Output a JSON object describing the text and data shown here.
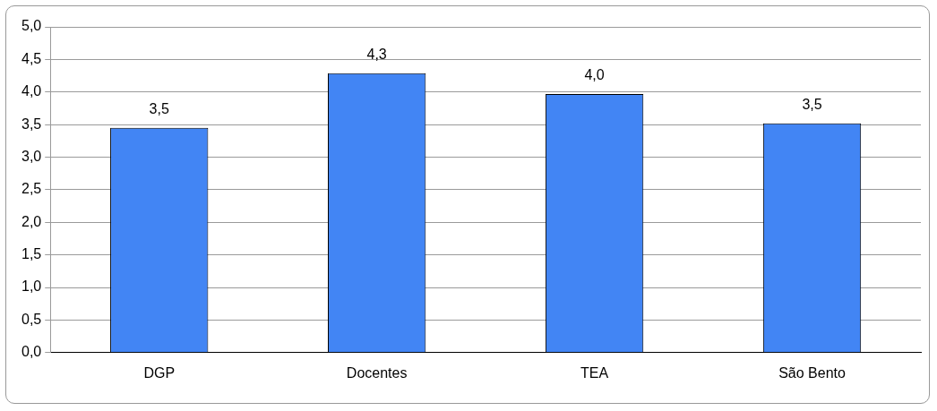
{
  "chart_data": {
    "type": "bar",
    "categories": [
      "DGP",
      "Docentes",
      "TEA",
      "São Bento"
    ],
    "values": [
      3.45,
      4.29,
      3.97,
      3.52
    ],
    "value_labels": [
      "3,5",
      "4,3",
      "4,0",
      "3,5"
    ],
    "color": "#4285f4",
    "ylim": [
      0,
      5
    ],
    "yticks": [
      {
        "value": 0,
        "label": "0,0"
      },
      {
        "value": 0.5,
        "label": "0,5"
      },
      {
        "value": 1,
        "label": "1,0"
      },
      {
        "value": 1.5,
        "label": "1,5"
      },
      {
        "value": 2,
        "label": "2,0"
      },
      {
        "value": 2.5,
        "label": "2,5"
      },
      {
        "value": 3,
        "label": "3,0"
      },
      {
        "value": 3.5,
        "label": "3,5"
      },
      {
        "value": 4,
        "label": "4,0"
      },
      {
        "value": 4.5,
        "label": "4,5"
      },
      {
        "value": 5,
        "label": "5,0"
      }
    ],
    "grid": "y",
    "legend": false
  }
}
